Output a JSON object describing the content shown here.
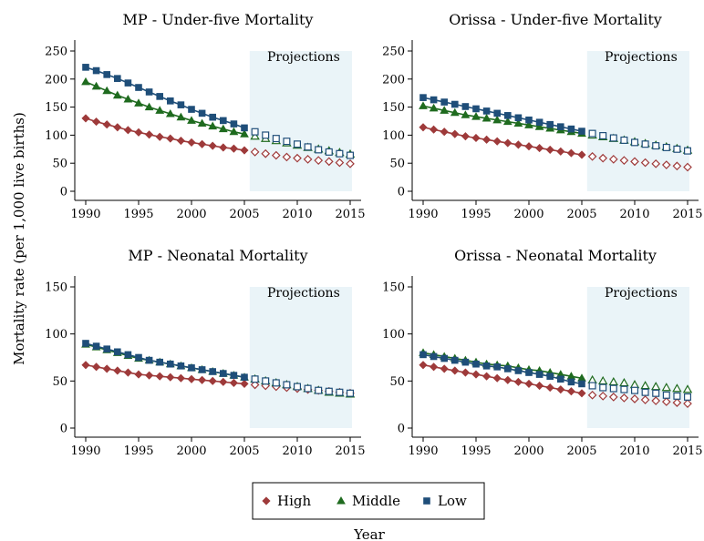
{
  "figure": {
    "ylabel": "Mortality rate (per 1,000 live births)",
    "xlabel": "Year",
    "projection_label": "Projections"
  },
  "legend": {
    "items": [
      {
        "label": "High",
        "color": "#9e3a3a",
        "marker": "diamond"
      },
      {
        "label": "Middle",
        "color": "#1f6b1f",
        "marker": "triangle"
      },
      {
        "label": "Low",
        "color": "#1f4e79",
        "marker": "square"
      }
    ]
  },
  "colors": {
    "high": "#9e3a3a",
    "middle": "#1f6b1f",
    "low": "#1f4e79",
    "projection_shade": "#eaf4f8"
  },
  "chart_data": [
    {
      "type": "scatter",
      "title": "MP - Under-five Mortality",
      "x": [
        1990,
        1991,
        1992,
        1993,
        1994,
        1995,
        1996,
        1997,
        1998,
        1999,
        2000,
        2001,
        2002,
        2003,
        2004,
        2005,
        2006,
        2007,
        2008,
        2009,
        2010,
        2011,
        2012,
        2013,
        2014,
        2015
      ],
      "projection_from": 2006,
      "ylim": [
        0,
        250
      ],
      "yticks": [
        0,
        50,
        100,
        150,
        200,
        250
      ],
      "xlim": [
        1990,
        2015
      ],
      "xticks": [
        1990,
        1995,
        2000,
        2005,
        2010,
        2015
      ],
      "series": [
        {
          "name": "High",
          "values": [
            130,
            124,
            119,
            114,
            109,
            105,
            101,
            97,
            94,
            90,
            87,
            84,
            81,
            78,
            76,
            73,
            70,
            67,
            64,
            61,
            59,
            57,
            55,
            53,
            51,
            49
          ]
        },
        {
          "name": "Middle",
          "values": [
            195,
            187,
            179,
            171,
            164,
            157,
            150,
            144,
            138,
            132,
            126,
            121,
            116,
            111,
            106,
            102,
            98,
            94,
            90,
            86,
            82,
            78,
            75,
            72,
            69,
            66
          ]
        },
        {
          "name": "Low",
          "values": [
            221,
            215,
            208,
            201,
            193,
            185,
            177,
            169,
            161,
            154,
            146,
            139,
            132,
            126,
            120,
            113,
            106,
            100,
            94,
            89,
            84,
            79,
            74,
            70,
            67,
            64
          ]
        }
      ]
    },
    {
      "type": "scatter",
      "title": "Orissa - Under-five Mortality",
      "x": [
        1990,
        1991,
        1992,
        1993,
        1994,
        1995,
        1996,
        1997,
        1998,
        1999,
        2000,
        2001,
        2002,
        2003,
        2004,
        2005,
        2006,
        2007,
        2008,
        2009,
        2010,
        2011,
        2012,
        2013,
        2014,
        2015
      ],
      "projection_from": 2006,
      "ylim": [
        0,
        250
      ],
      "yticks": [
        0,
        50,
        100,
        150,
        200,
        250
      ],
      "xlim": [
        1990,
        2015
      ],
      "xticks": [
        1990,
        1995,
        2000,
        2005,
        2010,
        2015
      ],
      "series": [
        {
          "name": "High",
          "values": [
            114,
            110,
            106,
            102,
            98,
            95,
            92,
            89,
            86,
            83,
            80,
            77,
            74,
            71,
            68,
            65,
            62,
            59,
            57,
            55,
            53,
            51,
            49,
            47,
            45,
            43
          ]
        },
        {
          "name": "Middle",
          "values": [
            152,
            148,
            144,
            140,
            136,
            133,
            130,
            127,
            124,
            121,
            118,
            115,
            112,
            109,
            106,
            103,
            100,
            97,
            94,
            91,
            88,
            85,
            82,
            79,
            76,
            73
          ]
        },
        {
          "name": "Low",
          "values": [
            167,
            163,
            159,
            155,
            151,
            147,
            143,
            139,
            135,
            131,
            127,
            123,
            119,
            115,
            111,
            107,
            103,
            99,
            95,
            91,
            87,
            84,
            81,
            78,
            75,
            72
          ]
        }
      ]
    },
    {
      "type": "scatter",
      "title": "MP - Neonatal Mortality",
      "x": [
        1990,
        1991,
        1992,
        1993,
        1994,
        1995,
        1996,
        1997,
        1998,
        1999,
        2000,
        2001,
        2002,
        2003,
        2004,
        2005,
        2006,
        2007,
        2008,
        2009,
        2010,
        2011,
        2012,
        2013,
        2014,
        2015
      ],
      "projection_from": 2006,
      "ylim": [
        0,
        150
      ],
      "yticks": [
        0,
        50,
        100,
        150
      ],
      "xlim": [
        1990,
        2015
      ],
      "xticks": [
        1990,
        1995,
        2000,
        2005,
        2010,
        2015
      ],
      "series": [
        {
          "name": "High",
          "values": [
            67,
            65,
            63,
            61,
            59,
            57,
            56,
            55,
            54,
            53,
            52,
            51,
            50,
            49,
            48,
            47,
            46,
            45,
            44,
            43,
            42,
            41,
            40,
            39,
            38,
            37
          ]
        },
        {
          "name": "Middle",
          "values": [
            89,
            86,
            83,
            80,
            77,
            74,
            72,
            70,
            68,
            66,
            64,
            62,
            60,
            58,
            56,
            54,
            52,
            50,
            48,
            46,
            44,
            42,
            40,
            38,
            37,
            36
          ]
        },
        {
          "name": "Low",
          "values": [
            90,
            87,
            84,
            81,
            78,
            75,
            72,
            70,
            68,
            66,
            64,
            62,
            60,
            58,
            56,
            54,
            52,
            50,
            48,
            46,
            44,
            42,
            40,
            39,
            38,
            37
          ]
        }
      ]
    },
    {
      "type": "scatter",
      "title": "Orissa - Neonatal Mortality",
      "x": [
        1990,
        1991,
        1992,
        1993,
        1994,
        1995,
        1996,
        1997,
        1998,
        1999,
        2000,
        2001,
        2002,
        2003,
        2004,
        2005,
        2006,
        2007,
        2008,
        2009,
        2010,
        2011,
        2012,
        2013,
        2014,
        2015
      ],
      "projection_from": 2006,
      "ylim": [
        0,
        150
      ],
      "yticks": [
        0,
        50,
        100,
        150
      ],
      "xlim": [
        1990,
        2015
      ],
      "xticks": [
        1990,
        1995,
        2000,
        2005,
        2010,
        2015
      ],
      "series": [
        {
          "name": "High",
          "values": [
            67,
            65,
            63,
            61,
            59,
            57,
            55,
            53,
            51,
            49,
            47,
            45,
            43,
            41,
            39,
            37,
            35,
            34,
            33,
            32,
            31,
            30,
            29,
            28,
            27,
            26
          ]
        },
        {
          "name": "Middle",
          "values": [
            80,
            78,
            76,
            74,
            72,
            70,
            68,
            67,
            66,
            64,
            62,
            61,
            59,
            57,
            55,
            53,
            51,
            50,
            49,
            48,
            46,
            45,
            44,
            43,
            42,
            41
          ]
        },
        {
          "name": "Low",
          "values": [
            78,
            76,
            74,
            72,
            70,
            68,
            66,
            65,
            63,
            61,
            59,
            57,
            55,
            52,
            49,
            47,
            45,
            43,
            42,
            41,
            40,
            38,
            37,
            35,
            34,
            33
          ]
        }
      ]
    }
  ]
}
